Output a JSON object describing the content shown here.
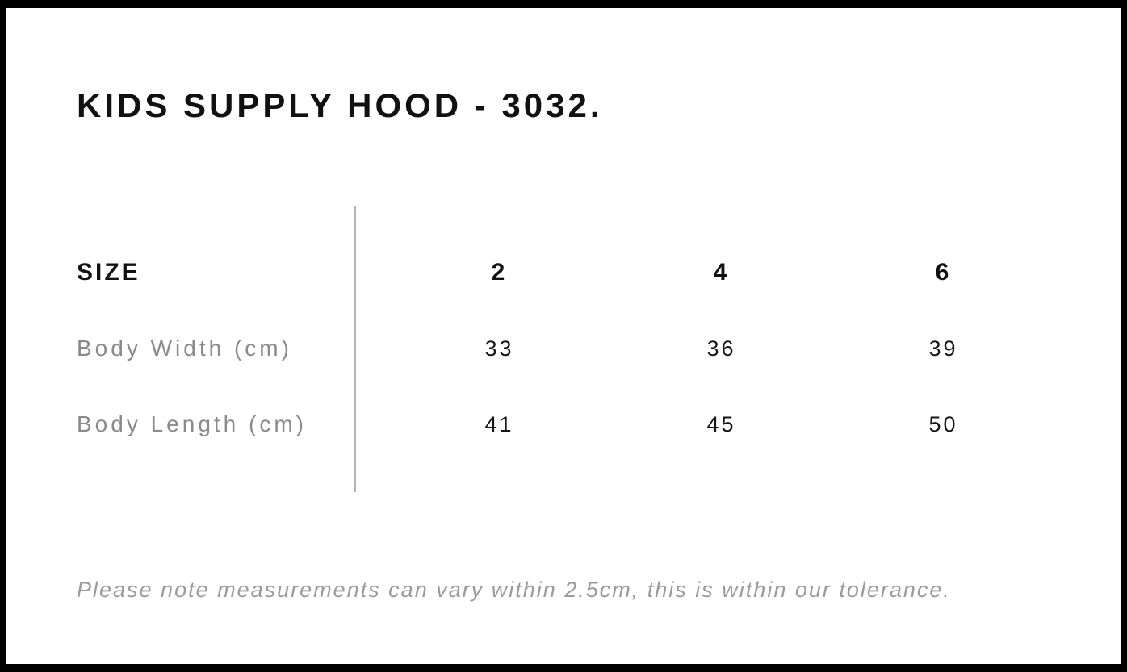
{
  "page": {
    "title": "KIDS SUPPLY HOOD - 3032."
  },
  "size_chart": {
    "header_label": "SIZE",
    "sizes": [
      "2",
      "4",
      "6"
    ],
    "rows": [
      {
        "label": "Body Width (cm)",
        "values": [
          "33",
          "36",
          "39"
        ]
      },
      {
        "label": "Body Length (cm)",
        "values": [
          "41",
          "45",
          "50"
        ]
      }
    ]
  },
  "footer": {
    "note": "Please note measurements can vary within 2.5cm, this is within our tolerance."
  },
  "colors": {
    "border": "#000000",
    "background": "#ffffff",
    "title_text": "#111111",
    "header_text": "#111111",
    "row_label_gray": "#8a8a8a",
    "value_text": "#161616",
    "divider_gray": "#b4b4b4",
    "note_gray": "#9b9b9b"
  }
}
